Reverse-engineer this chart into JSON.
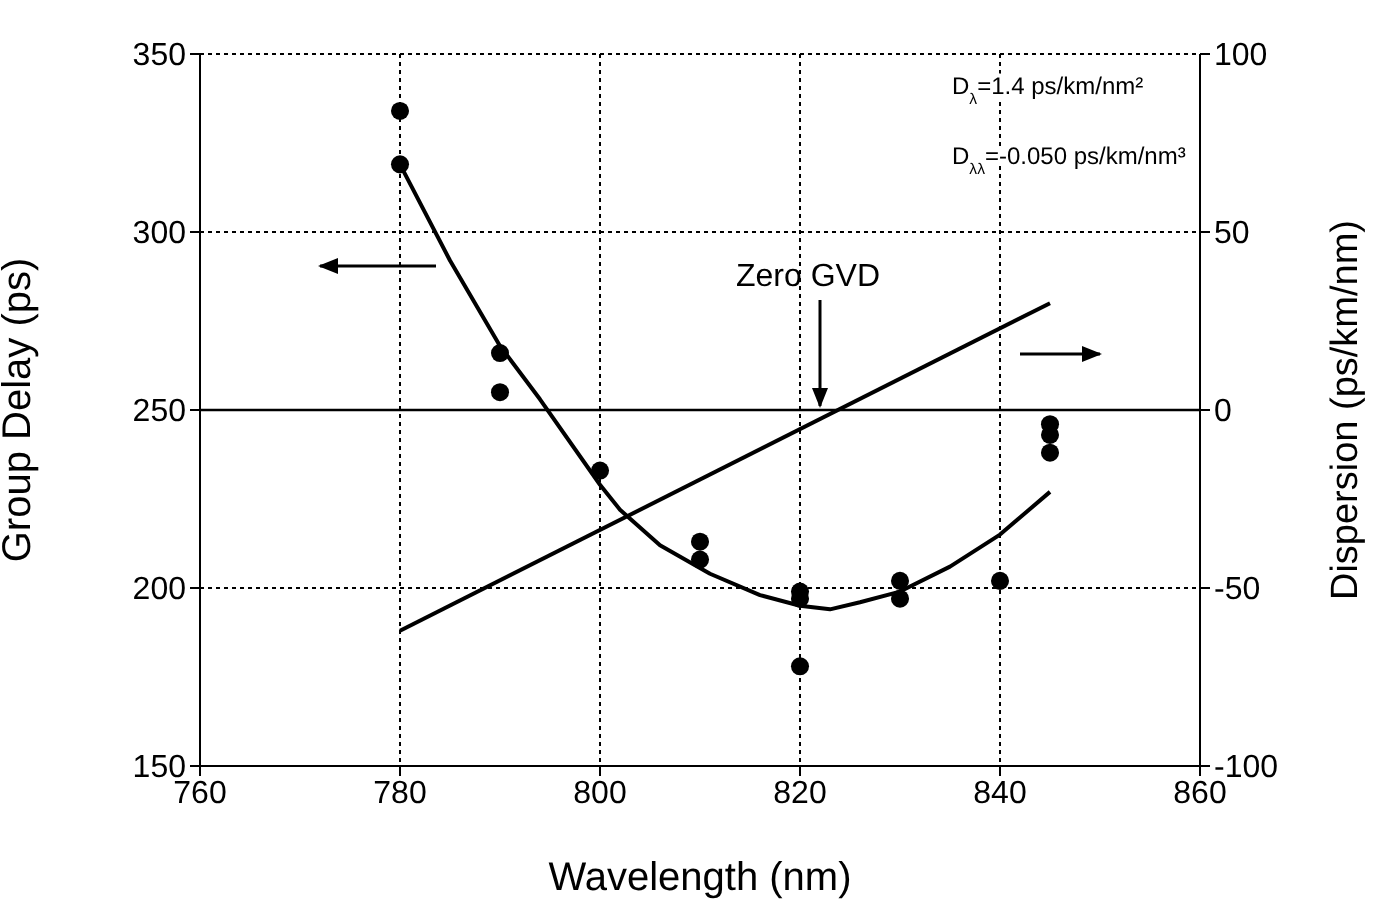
{
  "chart_data": {
    "type": "scatter",
    "xlabel": "Wavelength (nm)",
    "ylabel": "Group Delay (ps)",
    "y2label": "Dispersion  (ps/km/nm)",
    "xlim": [
      760,
      860
    ],
    "xticks": [
      760,
      780,
      800,
      820,
      840,
      860
    ],
    "ylim": [
      150,
      350
    ],
    "yticks": [
      150,
      200,
      250,
      300,
      350
    ],
    "y2lim": [
      -100,
      100
    ],
    "y2ticks": [
      -100,
      -50,
      0,
      50,
      100
    ],
    "grid": true,
    "legend": false,
    "ref_lines": [
      {
        "axis": "y2",
        "value": 0,
        "color": "#000000",
        "line_style": "solid"
      }
    ],
    "annotations": [
      "D$_{λ}$=1.4 ps/km/nm²",
      "D$_{λλ}$=-0.050 ps/km/nm³",
      {
        "text": "Zero GVD",
        "x": 822,
        "y": 250
      }
    ],
    "series": [
      {
        "color": "#000000",
        "marker": "circle",
        "x": [
          780,
          780,
          790,
          790,
          800,
          810,
          810,
          820,
          820,
          820,
          830,
          830,
          840,
          845,
          845,
          845
        ],
        "values": [
          334,
          319,
          266,
          255,
          233,
          213,
          208,
          199,
          197,
          178,
          202,
          197,
          202,
          246,
          243,
          238
        ]
      },
      {
        "type": "line",
        "color": "#000000",
        "marker": "none",
        "x": [
          780,
          785,
          790,
          794,
          800,
          802,
          806,
          811,
          816,
          820,
          823,
          826,
          830,
          835,
          840,
          845
        ],
        "values": [
          319,
          292,
          268,
          253,
          229,
          222,
          212,
          204,
          198,
          195,
          194,
          196,
          199,
          206,
          215,
          227
        ]
      },
      {
        "type": "line",
        "axis": "y2",
        "color": "#000000",
        "marker": "none",
        "x": [
          780,
          845
        ],
        "values": [
          -62,
          30
        ]
      }
    ]
  }
}
